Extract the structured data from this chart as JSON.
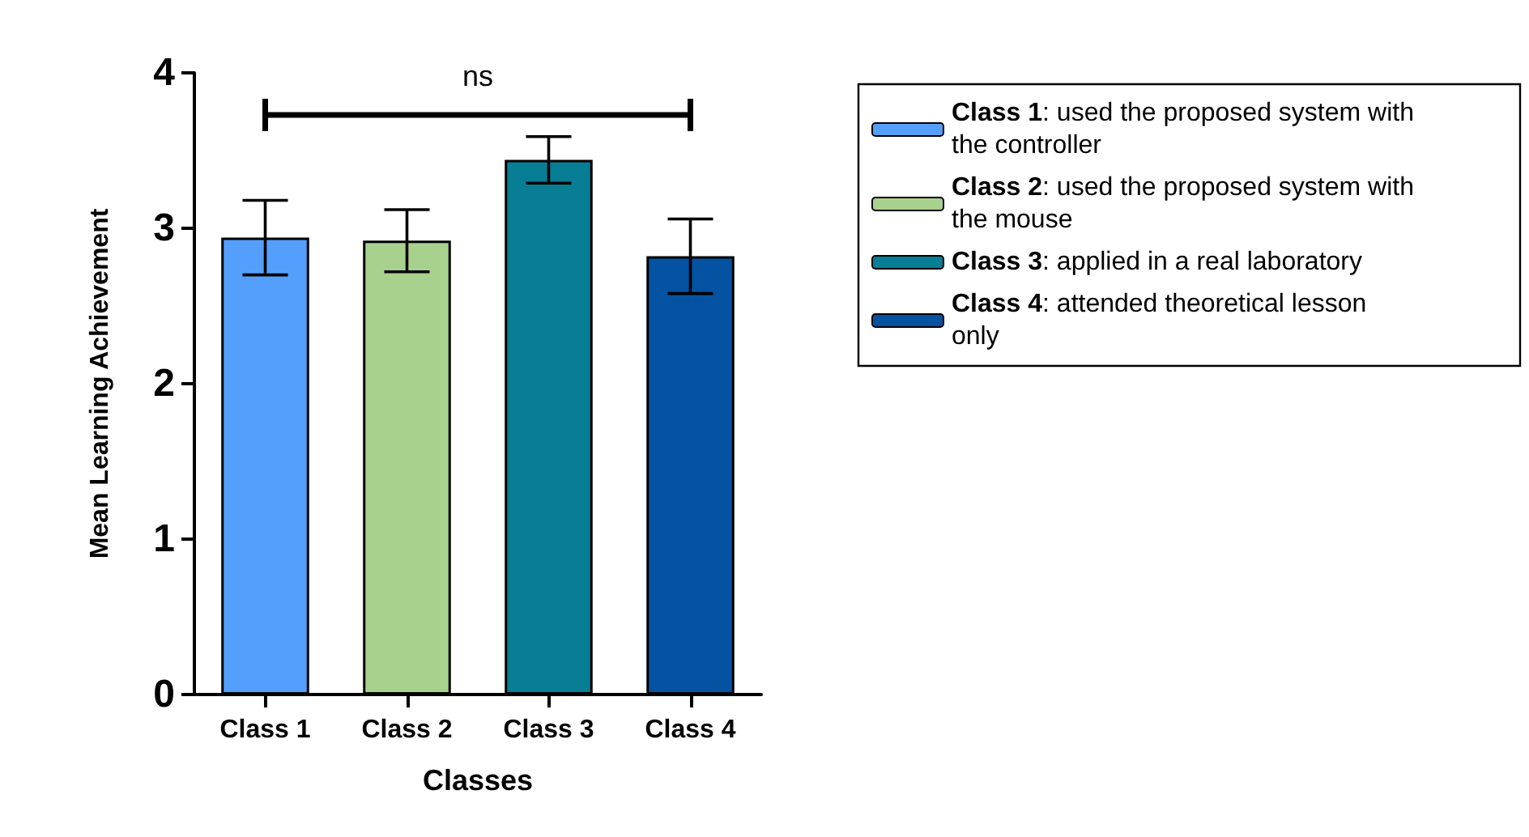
{
  "chart_data": {
    "type": "bar",
    "xlabel": "Classes",
    "ylabel": "Mean Learning Achievement",
    "categories": [
      "Class 1",
      "Class 2",
      "Class 3",
      "Class 4"
    ],
    "series": [
      {
        "name": "Class 1: used the proposed system with the controller",
        "color": "#559ffc",
        "values": [
          2.94,
          null,
          null,
          null
        ],
        "errors": [
          0.24,
          null,
          null,
          null
        ]
      },
      {
        "name": "Class 2: used the proposed system with the mouse",
        "color": "#a9d18e",
        "values": [
          null,
          2.92,
          null,
          null
        ],
        "errors": [
          null,
          0.2,
          null,
          null
        ]
      },
      {
        "name": "Class 3: applied in a real laboratory",
        "color": "#077e93",
        "values": [
          null,
          null,
          3.44,
          null
        ],
        "errors": [
          null,
          null,
          0.15,
          null
        ]
      },
      {
        "name": "Class 4: attended theoretical lesson only",
        "color": "#0452a2",
        "values": [
          null,
          null,
          null,
          2.82
        ],
        "errors": [
          null,
          null,
          null,
          0.24
        ]
      }
    ],
    "annotations": [
      "ns"
    ],
    "ylim": [
      0,
      4
    ],
    "yticks": [
      0,
      1,
      2,
      3,
      4
    ],
    "grid": false,
    "legend": "right"
  }
}
